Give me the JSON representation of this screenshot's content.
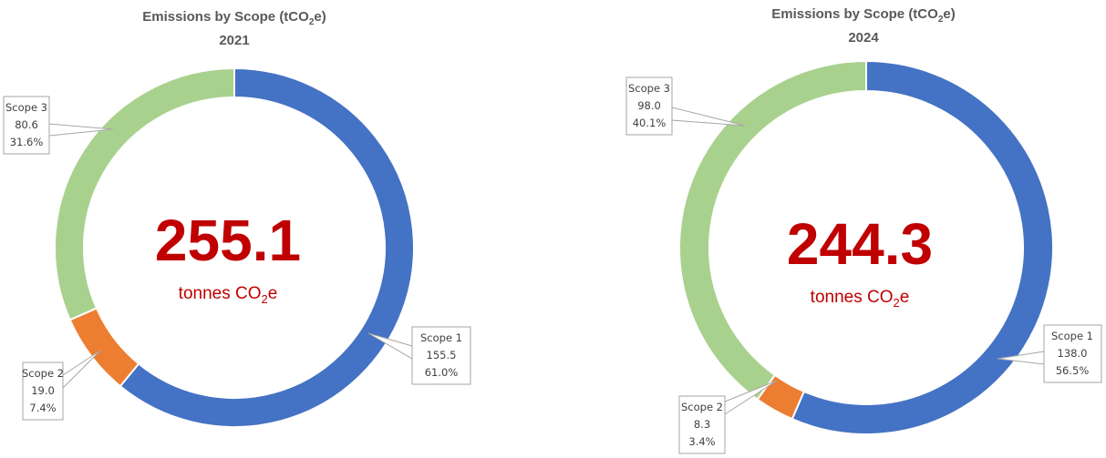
{
  "chart_data": [
    {
      "type": "donut",
      "title": "Emissions by Scope (tCO2e)",
      "title_main": "Emissions by Scope (tCO",
      "title_sub": "2",
      "title_end": "e)",
      "year": "2021",
      "center_total": "255.1",
      "center_unit_main": "tonnes CO",
      "center_unit_sub": "2",
      "center_unit_end": "e",
      "slices": [
        {
          "label": "Scope 1",
          "value": 155.5,
          "value_text": "155.5",
          "percent_text": "61.0%",
          "color": "#4472c4"
        },
        {
          "label": "Scope 2",
          "value": 19.0,
          "value_text": "19.0",
          "percent_text": "7.4%",
          "color": "#ed7d31"
        },
        {
          "label": "Scope 3",
          "value": 80.6,
          "value_text": "80.6",
          "percent_text": "31.6%",
          "color": "#a9d18e"
        }
      ]
    },
    {
      "type": "donut",
      "title": "Emissions by Scope (tCO2e)",
      "title_main": "Emissions by Scope (tCO",
      "title_sub": "2",
      "title_end": "e)",
      "year": "2024",
      "center_total": "244.3",
      "center_unit_main": "tonnes CO",
      "center_unit_sub": "2",
      "center_unit_end": "e",
      "slices": [
        {
          "label": "Scope 1",
          "value": 138.0,
          "value_text": "138.0",
          "percent_text": "56.5%",
          "color": "#4472c4"
        },
        {
          "label": "Scope 2",
          "value": 8.3,
          "value_text": "8.3",
          "percent_text": "3.4%",
          "color": "#ed7d31"
        },
        {
          "label": "Scope 3",
          "value": 98.0,
          "value_text": "98.0",
          "percent_text": "40.1%",
          "color": "#a9d18e"
        }
      ]
    }
  ]
}
